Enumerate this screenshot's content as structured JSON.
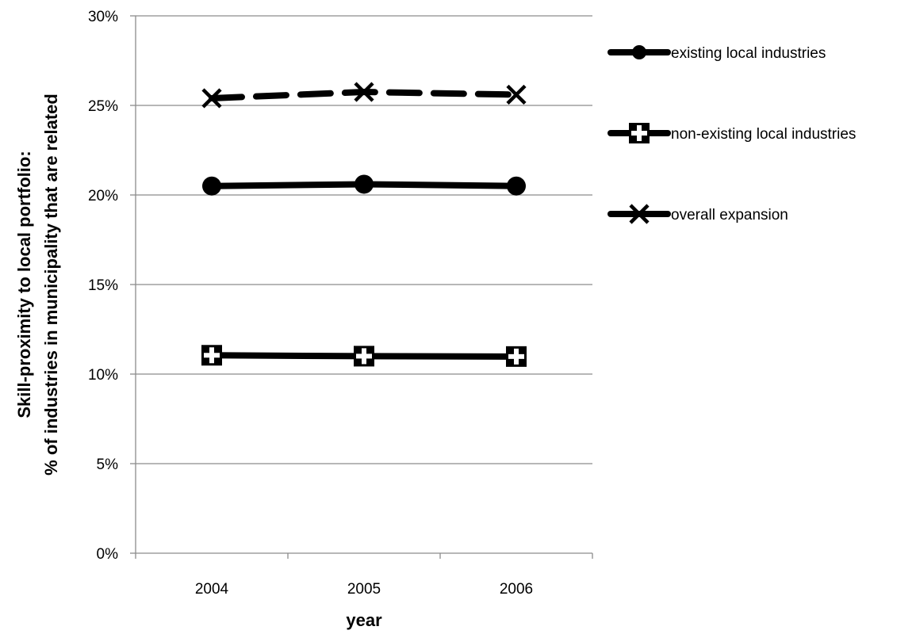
{
  "chart_data": {
    "type": "line",
    "x": [
      2004,
      2005,
      2006
    ],
    "categories": [
      "2004",
      "2005",
      "2006"
    ],
    "xlabel": "year",
    "ylabel": [
      "Skill-proximity to local portfolio:",
      "% of industries in municipality that are related"
    ],
    "ylim": [
      0,
      30
    ],
    "yticks": [
      "0%",
      "5%",
      "10%",
      "15%",
      "20%",
      "25%",
      "30%"
    ],
    "grid": "horizontal",
    "legend_position": "right",
    "series": [
      {
        "name": "existing local industries",
        "values": [
          20.5,
          20.6,
          20.5
        ],
        "marker": "circle",
        "line_style": "solid",
        "color": "#000000"
      },
      {
        "name": "non-existing local industries",
        "values": [
          11.05,
          11.0,
          10.98
        ],
        "marker": "plus-square",
        "line_style": "solid",
        "color": "#000000"
      },
      {
        "name": "overall expansion",
        "values": [
          25.4,
          25.75,
          25.6
        ],
        "marker": "x",
        "line_style": "dashed",
        "color": "#000000"
      }
    ]
  }
}
